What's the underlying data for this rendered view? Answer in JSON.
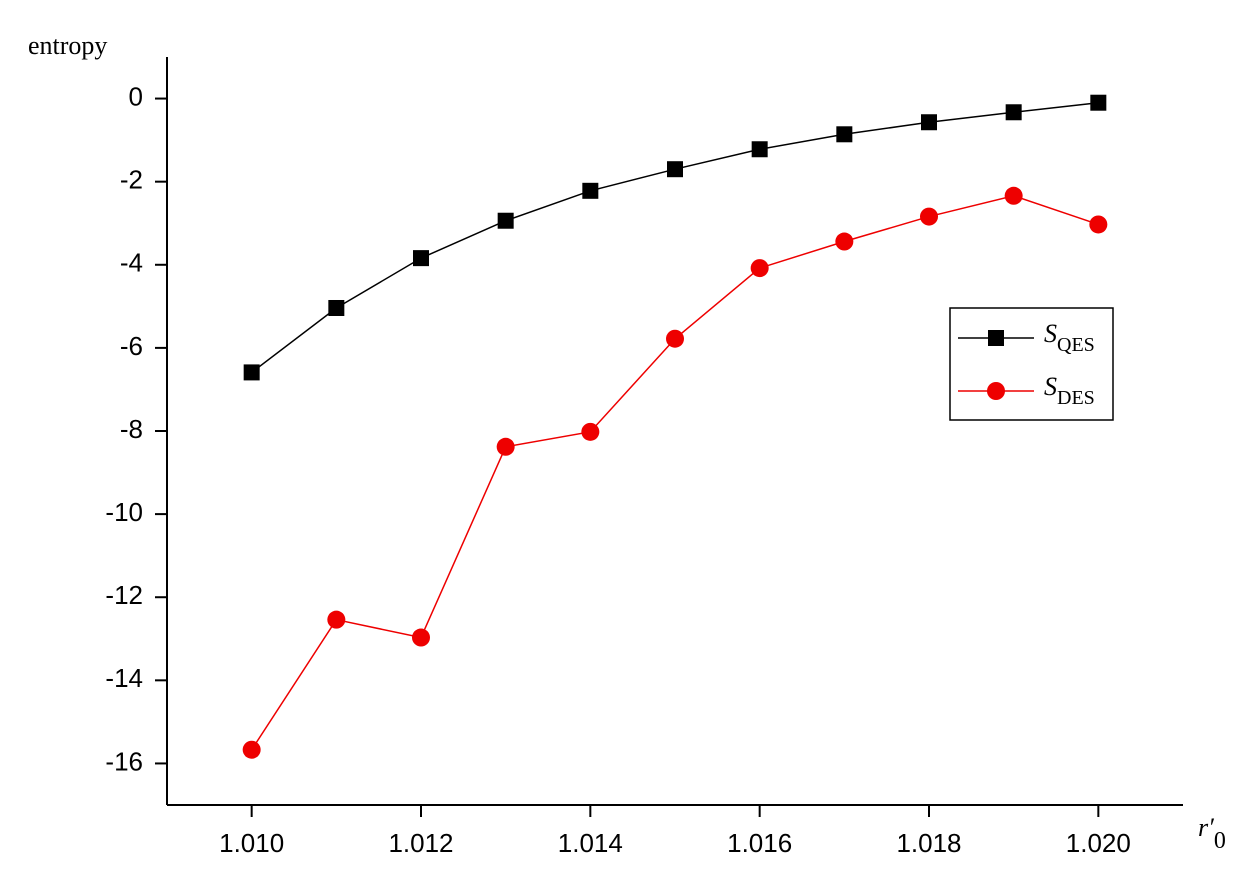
{
  "chart_data": {
    "type": "line",
    "y_label": "entropy",
    "x_label": "r′",
    "x_label_sub": "0",
    "x": [
      1.01,
      1.011,
      1.012,
      1.013,
      1.014,
      1.015,
      1.016,
      1.017,
      1.018,
      1.019,
      1.02
    ],
    "series": [
      {
        "name": "S",
        "name_sub": "QES",
        "color": "#000000",
        "marker": "square",
        "values": [
          -6.59,
          -5.04,
          -3.84,
          -2.94,
          -2.22,
          -1.7,
          -1.22,
          -0.86,
          -0.57,
          -0.33,
          -0.1
        ]
      },
      {
        "name": "S",
        "name_sub": "DES",
        "color": "#ee0000",
        "marker": "circle",
        "values": [
          -15.67,
          -12.54,
          -12.97,
          -8.38,
          -8.02,
          -5.78,
          -4.08,
          -3.44,
          -2.84,
          -2.34,
          -3.03
        ]
      }
    ],
    "xlim": [
      1.009,
      1.021
    ],
    "ylim": [
      -17,
      1
    ],
    "xticks": [
      {
        "value": 1.01,
        "label": "1.010"
      },
      1.012,
      1.014,
      1.016,
      1.018,
      {
        "value": 1.02,
        "label": "1.020"
      }
    ],
    "yticks": [
      0,
      -2,
      -4,
      -6,
      -8,
      -10,
      -12,
      -14,
      -16
    ],
    "grid": false,
    "legend": "right"
  }
}
